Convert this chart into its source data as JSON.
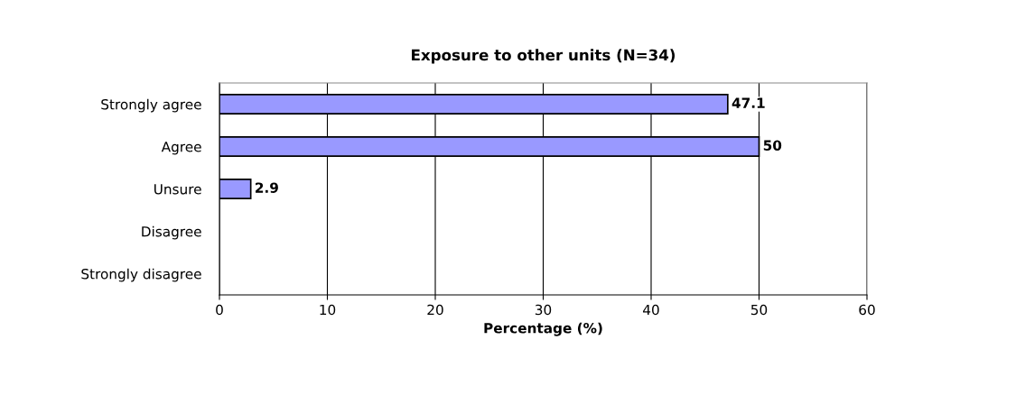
{
  "chart_data": {
    "type": "bar",
    "orientation": "horizontal",
    "title": "Exposure to other units (N=34)",
    "xlabel": "Percentage (%)",
    "categories": [
      "Strongly agree",
      "Agree",
      "Unsure",
      "Disagree",
      "Strongly disagree"
    ],
    "values": [
      47.1,
      50,
      2.9,
      0,
      0
    ],
    "value_labels": [
      "47.1",
      "50",
      "2.9",
      null,
      null
    ],
    "color": "#9999ff",
    "xlim": [
      0,
      60
    ],
    "xticks": [
      0,
      10,
      20,
      30,
      40,
      50,
      60
    ],
    "grid": "x",
    "legend": false
  }
}
